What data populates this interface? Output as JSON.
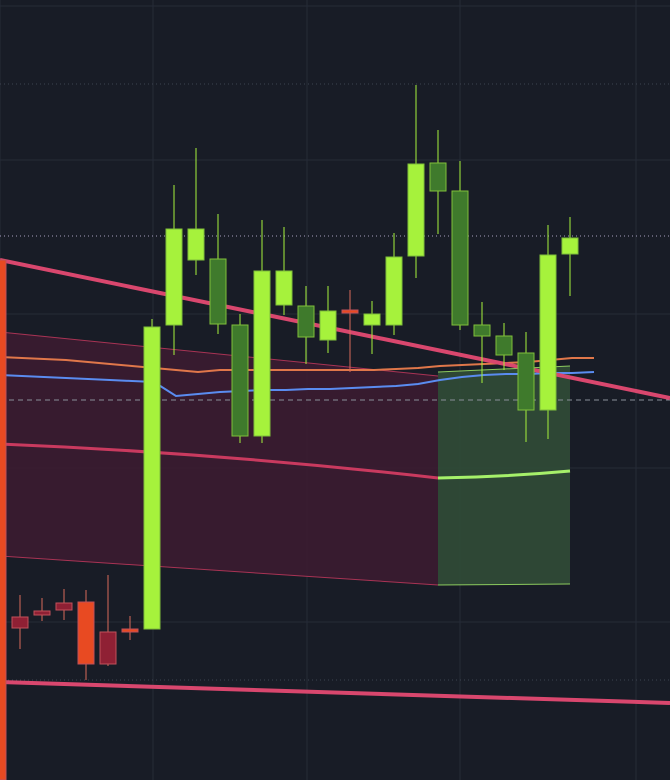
{
  "colors": {
    "background": "#181c26",
    "grid": "#262b37",
    "dotted_level": "#3d4350",
    "dotted_level_upper": "#a79fbf",
    "dashed_level": "#8a8f99",
    "trendline": "#d9476e",
    "band_red_fill": "#3b1c31",
    "band_red_edge": "#c93a5f",
    "band_green_fill": "#2f4a36",
    "band_green_edge": "#a6f06a",
    "ma_orange": "#e0774a",
    "ma_blue": "#5a8cf0",
    "bull_bright": "#a6f23c",
    "bull_dark": "#3f7a2c",
    "bear_red": "#8f2034",
    "bear_orange": "#e84a22",
    "wick_bull": "#a6f23c",
    "wick_bear": "#d96a5a"
  },
  "chart_data": {
    "type": "candlestick",
    "title": "",
    "xlabel": "",
    "ylabel": "",
    "ylim": [
      0,
      780
    ],
    "grid": true,
    "candles": [
      {
        "o": 520,
        "h": 520,
        "l": 0,
        "c": 0,
        "style": "bear_orange"
      },
      {
        "o": 152,
        "h": 185,
        "l": 131,
        "c": 163,
        "style": "bear_red"
      },
      {
        "o": 165,
        "h": 182,
        "l": 159,
        "c": 169,
        "style": "bear_red"
      },
      {
        "o": 170,
        "h": 191,
        "l": 160,
        "c": 177,
        "style": "bear_red"
      },
      {
        "o": 178,
        "h": 190,
        "l": 100,
        "c": 116,
        "style": "bear_orange"
      },
      {
        "o": 148,
        "h": 205,
        "l": 114,
        "c": 116,
        "style": "bear_red"
      },
      {
        "o": 151,
        "h": 164,
        "l": 140,
        "c": 148,
        "style": "bear_orange"
      },
      {
        "o": 151,
        "h": 461,
        "l": 151,
        "c": 453,
        "style": "bull_bright"
      },
      {
        "o": 455,
        "h": 595,
        "l": 425,
        "c": 551,
        "style": "bull_bright"
      },
      {
        "o": 551,
        "h": 632,
        "l": 505,
        "c": 520,
        "style": "bull_bright"
      },
      {
        "o": 521,
        "h": 566,
        "l": 446,
        "c": 456,
        "style": "bull_dark"
      },
      {
        "o": 455,
        "h": 466,
        "l": 337,
        "c": 344,
        "style": "bull_dark"
      },
      {
        "o": 344,
        "h": 560,
        "l": 337,
        "c": 509,
        "style": "bull_bright"
      },
      {
        "o": 509,
        "h": 553,
        "l": 465,
        "c": 475,
        "style": "bull_bright"
      },
      {
        "o": 474,
        "h": 494,
        "l": 416,
        "c": 443,
        "style": "bull_dark"
      },
      {
        "o": 440,
        "h": 494,
        "l": 427,
        "c": 469,
        "style": "bull_bright"
      },
      {
        "o": 467,
        "h": 490,
        "l": 408,
        "c": 470,
        "style": "bear_orange"
      },
      {
        "o": 455,
        "h": 479,
        "l": 426,
        "c": 466,
        "style": "bull_bright"
      },
      {
        "o": 455,
        "h": 547,
        "l": 445,
        "c": 523,
        "style": "bull_bright"
      },
      {
        "o": 524,
        "h": 695,
        "l": 502,
        "c": 616,
        "style": "bull_bright"
      },
      {
        "o": 617,
        "h": 650,
        "l": 546,
        "c": 589,
        "style": "bull_dark"
      },
      {
        "o": 589,
        "h": 619,
        "l": 450,
        "c": 455,
        "style": "bull_dark"
      },
      {
        "o": 455,
        "h": 478,
        "l": 397,
        "c": 444,
        "style": "bull_dark"
      },
      {
        "o": 444,
        "h": 457,
        "l": 410,
        "c": 425,
        "style": "bull_dark"
      },
      {
        "o": 427,
        "h": 448,
        "l": 338,
        "c": 370,
        "style": "bull_dark"
      },
      {
        "o": 370,
        "h": 555,
        "l": 341,
        "c": 525,
        "style": "bull_bright"
      },
      {
        "o": 526,
        "h": 563,
        "l": 484,
        "c": 542,
        "style": "bull_bright"
      }
    ],
    "moving_averages": [
      {
        "color_key": "ma_orange",
        "values": [
          423,
          422,
          421,
          420,
          418,
          416,
          414,
          412,
          410,
          408,
          410,
          410,
          410,
          410,
          410,
          410,
          410,
          410,
          411,
          412,
          414,
          415,
          416,
          417,
          418,
          420,
          422,
          422
        ]
      },
      {
        "color_key": "ma_blue",
        "values": [
          405,
          404,
          403,
          402,
          401,
          400,
          399,
          398,
          384,
          386,
          388,
          389,
          390,
          390,
          391,
          391,
          392,
          393,
          394,
          396,
          400,
          403,
          405,
          406,
          406,
          407,
          407,
          408
        ]
      }
    ],
    "trendlines": [
      {
        "from": [
          0,
          520
        ],
        "to": [
          670,
          382
        ]
      },
      {
        "from": [
          0,
          98
        ],
        "to": [
          670,
          77
        ]
      }
    ],
    "levels": [
      {
        "y": 696,
        "style": "dotted"
      },
      {
        "y": 544,
        "style": "dotted_upper"
      },
      {
        "y": 380,
        "style": "dashed"
      },
      {
        "y": 100,
        "style": "dotted"
      }
    ],
    "bands": [
      {
        "color": "red",
        "x_from": 0,
        "x_to": 438,
        "upper": [
          448,
          404
        ],
        "lower": [
          224,
          195
        ],
        "mid": [
          336,
          302
        ]
      },
      {
        "color": "green",
        "x_from": 438,
        "x_to": 570,
        "upper": [
          408,
          414
        ],
        "lower": [
          195,
          196
        ],
        "mid": [
          302,
          309
        ]
      }
    ]
  }
}
